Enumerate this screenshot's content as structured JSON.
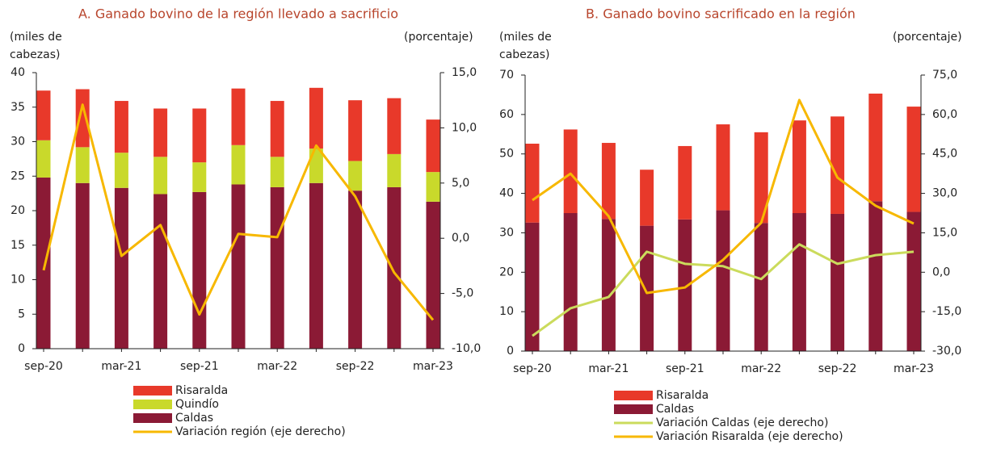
{
  "chart_data": [
    {
      "type": "bar",
      "title": "A. Ganado bovino de la región llevado a sacrificio",
      "y_label": "(miles de cabezas)",
      "y2_label": "(porcentaje)",
      "categories": [
        "sep-20",
        null,
        "mar-21",
        null,
        "sep-21",
        null,
        "mar-22",
        null,
        "sep-22",
        null,
        "mar-23"
      ],
      "ylim": [
        0,
        40
      ],
      "yticks": [
        0,
        5,
        10,
        15,
        20,
        25,
        30,
        35,
        40
      ],
      "y2lim": [
        -10,
        15
      ],
      "y2ticks": [
        {
          "value": -10,
          "label": "-10,0"
        },
        {
          "value": -5,
          "label": "-5,0"
        },
        {
          "value": 0,
          "label": "0,0"
        },
        {
          "value": 5,
          "label": "5,0"
        },
        {
          "value": 10,
          "label": "10,0"
        },
        {
          "value": 15,
          "label": "15,0"
        }
      ],
      "series": [
        {
          "name": "Risaralda",
          "kind": "bar",
          "color": "#e8392a",
          "values": [
            7.2,
            8.4,
            7.5,
            7.0,
            7.8,
            8.2,
            8.1,
            8.8,
            8.8,
            8.1,
            7.6
          ]
        },
        {
          "name": "Quindío",
          "kind": "bar",
          "color": "#c9d92b",
          "values": [
            5.4,
            5.2,
            5.1,
            5.4,
            4.3,
            5.7,
            4.4,
            5.0,
            4.3,
            4.8,
            4.3
          ]
        },
        {
          "name": "Caldas",
          "kind": "bar",
          "color": "#8b1a35",
          "values": [
            24.8,
            24.0,
            23.3,
            22.4,
            22.7,
            23.8,
            23.4,
            24.0,
            22.9,
            23.4,
            21.3
          ]
        },
        {
          "name": "Variación región (eje derecho)",
          "kind": "line",
          "axis": "y2",
          "color": "#f7b800",
          "values": [
            -2.9,
            12.1,
            -1.6,
            1.2,
            -6.9,
            0.4,
            0.1,
            8.4,
            3.8,
            -3.1,
            -7.4
          ]
        }
      ]
    },
    {
      "type": "bar",
      "title": "B. Ganado bovino sacrificado en la región",
      "y_label": "(miles de cabezas)",
      "y2_label": "(porcentaje)",
      "categories": [
        "sep-20",
        null,
        "mar-21",
        null,
        "sep-21",
        null,
        "mar-22",
        null,
        "sep-22",
        null,
        "mar-23"
      ],
      "ylim": [
        0,
        70
      ],
      "yticks": [
        0,
        10,
        20,
        30,
        40,
        50,
        60,
        70
      ],
      "y2lim": [
        -30,
        75
      ],
      "y2ticks": [
        {
          "value": -30,
          "label": "-30,0"
        },
        {
          "value": -15,
          "label": "-15,0"
        },
        {
          "value": 0,
          "label": "0,0"
        },
        {
          "value": 15,
          "label": "15,0"
        },
        {
          "value": 30,
          "label": "30,0"
        },
        {
          "value": 45,
          "label": "45,0"
        },
        {
          "value": 60,
          "label": "60,0"
        },
        {
          "value": 75,
          "label": "75,0"
        }
      ],
      "series": [
        {
          "name": "Risaralda",
          "kind": "bar",
          "color": "#e8392a",
          "values": [
            20.0,
            21.2,
            19.3,
            14.2,
            18.6,
            21.8,
            23.0,
            23.5,
            24.7,
            27.3,
            26.7
          ]
        },
        {
          "name": "Caldas",
          "kind": "bar",
          "color": "#8b1a35",
          "values": [
            32.6,
            35.0,
            33.5,
            31.8,
            33.4,
            35.7,
            32.5,
            35.0,
            34.8,
            38.0,
            35.3
          ]
        },
        {
          "name": "Variación Caldas (eje derecho)",
          "kind": "line",
          "axis": "y2",
          "color": "#cbdb5c",
          "values": [
            -24.2,
            -13.7,
            -9.4,
            7.8,
            3.2,
            2.3,
            -2.6,
            10.6,
            3.2,
            6.5,
            7.8
          ]
        },
        {
          "name": "Variación Risaralda (eje derecho)",
          "kind": "line",
          "axis": "y2",
          "color": "#f7b800",
          "values": [
            27.4,
            37.5,
            21.3,
            -7.9,
            -5.8,
            4.7,
            18.8,
            65.5,
            36.0,
            25.3,
            18.5
          ]
        }
      ]
    }
  ]
}
